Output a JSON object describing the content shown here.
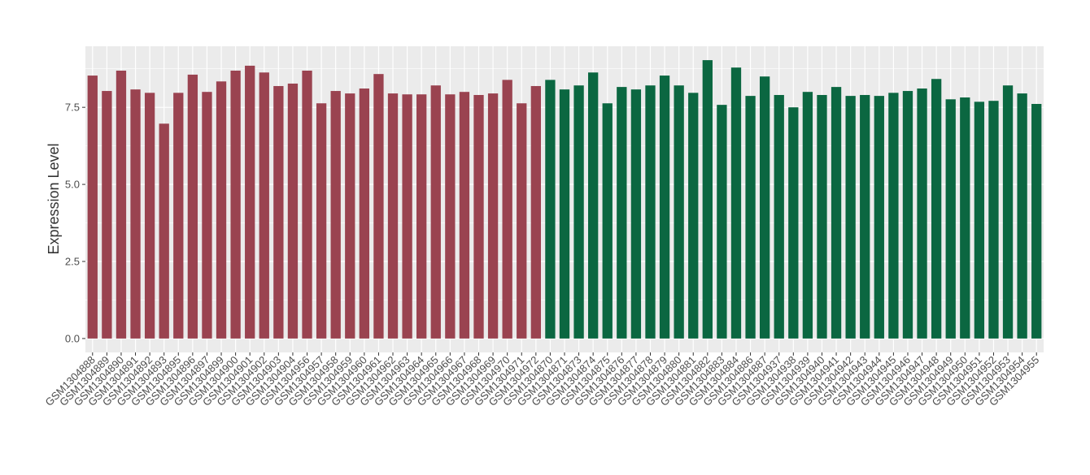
{
  "chart_data": {
    "type": "bar",
    "y_label": "Expression Level",
    "categories": [
      "GSM1304888",
      "GSM1304889",
      "GSM1304890",
      "GSM1304891",
      "GSM1304892",
      "GSM1304893",
      "GSM1304895",
      "GSM1304896",
      "GSM1304897",
      "GSM1304899",
      "GSM1304900",
      "GSM1304901",
      "GSM1304902",
      "GSM1304903",
      "GSM1304904",
      "GSM1304956",
      "GSM1304957",
      "GSM1304958",
      "GSM1304959",
      "GSM1304960",
      "GSM1304961",
      "GSM1304962",
      "GSM1304963",
      "GSM1304964",
      "GSM1304965",
      "GSM1304966",
      "GSM1304967",
      "GSM1304968",
      "GSM1304969",
      "GSM1304970",
      "GSM1304971",
      "GSM1304972",
      "GSM1304870",
      "GSM1304871",
      "GSM1304873",
      "GSM1304874",
      "GSM1304875",
      "GSM1304876",
      "GSM1304877",
      "GSM1304878",
      "GSM1304879",
      "GSM1304880",
      "GSM1304881",
      "GSM1304882",
      "GSM1304883",
      "GSM1304884",
      "GSM1304886",
      "GSM1304887",
      "GSM1304937",
      "GSM1304938",
      "GSM1304939",
      "GSM1304940",
      "GSM1304941",
      "GSM1304942",
      "GSM1304943",
      "GSM1304944",
      "GSM1304945",
      "GSM1304946",
      "GSM1304947",
      "GSM1304948",
      "GSM1304949",
      "GSM1304950",
      "GSM1304951",
      "GSM1304952",
      "GSM1304953",
      "GSM1304954",
      "GSM1304955"
    ],
    "values": [
      8.53,
      8.03,
      8.69,
      8.08,
      7.97,
      6.97,
      7.97,
      8.56,
      8.0,
      8.34,
      8.69,
      8.85,
      8.63,
      8.19,
      8.27,
      8.69,
      7.63,
      8.03,
      7.95,
      8.11,
      8.58,
      7.95,
      7.92,
      7.92,
      8.21,
      7.92,
      8.0,
      7.9,
      7.95,
      8.39,
      7.63,
      8.19,
      8.39,
      8.08,
      8.21,
      8.63,
      7.63,
      8.16,
      8.08,
      8.21,
      8.53,
      8.21,
      7.97,
      9.03,
      7.58,
      8.79,
      7.87,
      8.5,
      7.9,
      7.5,
      8.0,
      7.9,
      8.16,
      7.87,
      7.9,
      7.87,
      7.97,
      8.03,
      8.11,
      8.42,
      7.76,
      7.82,
      7.68,
      7.71,
      8.21,
      7.95,
      7.61
    ],
    "colors": [
      "#9a4350",
      "#9a4350",
      "#9a4350",
      "#9a4350",
      "#9a4350",
      "#9a4350",
      "#9a4350",
      "#9a4350",
      "#9a4350",
      "#9a4350",
      "#9a4350",
      "#9a4350",
      "#9a4350",
      "#9a4350",
      "#9a4350",
      "#9a4350",
      "#9a4350",
      "#9a4350",
      "#9a4350",
      "#9a4350",
      "#9a4350",
      "#9a4350",
      "#9a4350",
      "#9a4350",
      "#9a4350",
      "#9a4350",
      "#9a4350",
      "#9a4350",
      "#9a4350",
      "#9a4350",
      "#9a4350",
      "#9a4350",
      "#0b6741",
      "#0b6741",
      "#0b6741",
      "#0b6741",
      "#0b6741",
      "#0b6741",
      "#0b6741",
      "#0b6741",
      "#0b6741",
      "#0b6741",
      "#0b6741",
      "#0b6741",
      "#0b6741",
      "#0b6741",
      "#0b6741",
      "#0b6741",
      "#0b6741",
      "#0b6741",
      "#0b6741",
      "#0b6741",
      "#0b6741",
      "#0b6741",
      "#0b6741",
      "#0b6741",
      "#0b6741",
      "#0b6741",
      "#0b6741",
      "#0b6741",
      "#0b6741",
      "#0b6741",
      "#0b6741",
      "#0b6741",
      "#0b6741",
      "#0b6741",
      "#0b6741"
    ],
    "ylim": [
      -0.45,
      9.48
    ],
    "yticks": [
      {
        "value": 0,
        "label": "0.0"
      },
      {
        "value": 2.5,
        "label": "2.5"
      },
      {
        "value": 5,
        "label": "5.0"
      },
      {
        "value": 7.5,
        "label": "7.5"
      }
    ],
    "grid": true
  }
}
